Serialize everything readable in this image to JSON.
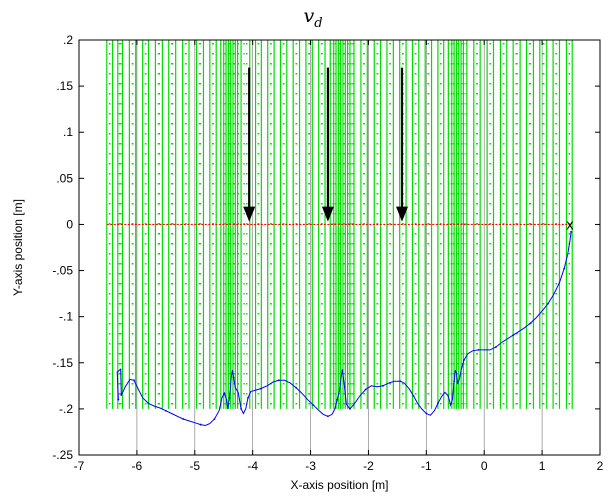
{
  "chart_data": {
    "type": "line",
    "title": "v",
    "title_subscript": "d",
    "xlabel": "X-axis position [m]",
    "ylabel": "Y-axis position [m]",
    "xlim": [
      -7,
      2
    ],
    "ylim": [
      -0.25,
      0.2
    ],
    "x_ticks": [
      -7,
      -6,
      -5,
      -4,
      -3,
      -2,
      -1,
      0,
      1,
      2
    ],
    "y_ticks": [
      -0.25,
      -0.2,
      -0.15,
      -0.1,
      -0.05,
      0,
      0.05,
      0.1,
      0.15,
      0.2
    ],
    "grid": "vertical",
    "colors": {
      "field_lines": "#00dd00",
      "reference": "#ff0000",
      "trajectory": "#0000ff",
      "grid": "#888888",
      "arrows": "#000000"
    },
    "field_lines": {
      "x_positions": [
        -6.52,
        -6.42,
        -6.33,
        -6.25,
        -6.13,
        -6.02,
        -5.9,
        -5.8,
        -5.68,
        -5.56,
        -5.45,
        -5.33,
        -5.21,
        -5.1,
        -4.97,
        -4.85,
        -4.74,
        -4.63,
        -4.55,
        -4.5,
        -4.46,
        -4.42,
        -4.38,
        -4.34,
        -4.3,
        -4.26,
        -4.2,
        -4.05,
        -3.95,
        -3.85,
        -3.74,
        -3.63,
        -3.52,
        -3.41,
        -3.3,
        -3.19,
        -3.08,
        -2.97,
        -2.86,
        -2.75,
        -2.66,
        -2.6,
        -2.56,
        -2.52,
        -2.48,
        -2.44,
        -2.4,
        -2.36,
        -2.32,
        -2.25,
        -2.13,
        -2.02,
        -1.9,
        -1.79,
        -1.68,
        -1.57,
        -1.46,
        -1.35,
        -1.24,
        -1.13,
        -1.02,
        -0.91,
        -0.8,
        -0.7,
        -0.62,
        -0.56,
        -0.52,
        -0.48,
        -0.44,
        -0.4,
        -0.36,
        -0.3,
        -0.18,
        -0.07,
        0.05,
        0.16,
        0.28,
        0.39,
        0.5,
        0.62,
        0.73,
        0.85,
        0.96,
        1.08,
        1.19,
        1.3,
        1.42,
        1.52
      ],
      "y_range": [
        -0.2,
        0.2
      ]
    },
    "reference_line": {
      "y": 0,
      "x_range": [
        -6.52,
        1.5
      ]
    },
    "arrows": [
      {
        "x": -4.06,
        "y_start": 0.17,
        "y_end": 0.003
      },
      {
        "x": -2.7,
        "y_start": 0.17,
        "y_end": 0.003
      },
      {
        "x": -1.42,
        "y_start": 0.17,
        "y_end": 0.003
      }
    ],
    "end_marker": {
      "label": "x",
      "x": 1.48,
      "y": 0.0
    },
    "series": [
      {
        "values": [
          [
            -6.32,
            -0.19
          ],
          [
            -6.34,
            -0.16
          ],
          [
            -6.28,
            -0.157
          ],
          [
            -6.27,
            -0.185
          ],
          [
            -6.2,
            -0.176
          ],
          [
            -6.12,
            -0.168
          ],
          [
            -6.05,
            -0.169
          ],
          [
            -5.98,
            -0.178
          ],
          [
            -5.9,
            -0.188
          ],
          [
            -5.8,
            -0.194
          ],
          [
            -5.7,
            -0.197
          ],
          [
            -5.6,
            -0.199
          ],
          [
            -5.5,
            -0.202
          ],
          [
            -5.4,
            -0.205
          ],
          [
            -5.3,
            -0.208
          ],
          [
            -5.2,
            -0.211
          ],
          [
            -5.1,
            -0.213
          ],
          [
            -5.0,
            -0.215
          ],
          [
            -4.9,
            -0.217
          ],
          [
            -4.82,
            -0.218
          ],
          [
            -4.74,
            -0.216
          ],
          [
            -4.66,
            -0.211
          ],
          [
            -4.58,
            -0.202
          ],
          [
            -4.53,
            -0.188
          ],
          [
            -4.49,
            -0.183
          ],
          [
            -4.45,
            -0.19
          ],
          [
            -4.43,
            -0.2
          ],
          [
            -4.4,
            -0.188
          ],
          [
            -4.37,
            -0.166
          ],
          [
            -4.35,
            -0.158
          ],
          [
            -4.33,
            -0.166
          ],
          [
            -4.3,
            -0.177
          ],
          [
            -4.25,
            -0.182
          ],
          [
            -4.2,
            -0.2
          ],
          [
            -4.16,
            -0.205
          ],
          [
            -4.12,
            -0.2
          ],
          [
            -4.08,
            -0.188
          ],
          [
            -4.03,
            -0.181
          ],
          [
            -3.96,
            -0.18
          ],
          [
            -3.86,
            -0.178
          ],
          [
            -3.75,
            -0.175
          ],
          [
            -3.65,
            -0.171
          ],
          [
            -3.55,
            -0.169
          ],
          [
            -3.45,
            -0.169
          ],
          [
            -3.35,
            -0.172
          ],
          [
            -3.25,
            -0.177
          ],
          [
            -3.15,
            -0.183
          ],
          [
            -3.05,
            -0.19
          ],
          [
            -2.95,
            -0.196
          ],
          [
            -2.85,
            -0.202
          ],
          [
            -2.78,
            -0.206
          ],
          [
            -2.7,
            -0.208
          ],
          [
            -2.63,
            -0.206
          ],
          [
            -2.58,
            -0.2
          ],
          [
            -2.54,
            -0.19
          ],
          [
            -2.5,
            -0.18
          ],
          [
            -2.47,
            -0.165
          ],
          [
            -2.45,
            -0.158
          ],
          [
            -2.42,
            -0.172
          ],
          [
            -2.38,
            -0.195
          ],
          [
            -2.32,
            -0.2
          ],
          [
            -2.25,
            -0.195
          ],
          [
            -2.15,
            -0.186
          ],
          [
            -2.05,
            -0.179
          ],
          [
            -1.95,
            -0.175
          ],
          [
            -1.85,
            -0.176
          ],
          [
            -1.75,
            -0.175
          ],
          [
            -1.65,
            -0.172
          ],
          [
            -1.55,
            -0.17
          ],
          [
            -1.45,
            -0.17
          ],
          [
            -1.38,
            -0.172
          ],
          [
            -1.3,
            -0.178
          ],
          [
            -1.22,
            -0.186
          ],
          [
            -1.15,
            -0.194
          ],
          [
            -1.08,
            -0.2
          ],
          [
            -1.0,
            -0.205
          ],
          [
            -0.93,
            -0.207
          ],
          [
            -0.86,
            -0.202
          ],
          [
            -0.8,
            -0.194
          ],
          [
            -0.74,
            -0.187
          ],
          [
            -0.68,
            -0.182
          ],
          [
            -0.62,
            -0.186
          ],
          [
            -0.58,
            -0.196
          ],
          [
            -0.55,
            -0.19
          ],
          [
            -0.52,
            -0.17
          ],
          [
            -0.5,
            -0.158
          ],
          [
            -0.48,
            -0.161
          ],
          [
            -0.46,
            -0.172
          ],
          [
            -0.43,
            -0.168
          ],
          [
            -0.4,
            -0.158
          ],
          [
            -0.35,
            -0.147
          ],
          [
            -0.28,
            -0.14
          ],
          [
            -0.2,
            -0.137
          ],
          [
            -0.1,
            -0.136
          ],
          [
            0.0,
            -0.136
          ],
          [
            0.1,
            -0.136
          ],
          [
            0.2,
            -0.133
          ],
          [
            0.3,
            -0.128
          ],
          [
            0.4,
            -0.124
          ],
          [
            0.5,
            -0.12
          ],
          [
            0.6,
            -0.116
          ],
          [
            0.7,
            -0.112
          ],
          [
            0.8,
            -0.107
          ],
          [
            0.9,
            -0.101
          ],
          [
            1.0,
            -0.094
          ],
          [
            1.1,
            -0.086
          ],
          [
            1.2,
            -0.076
          ],
          [
            1.3,
            -0.063
          ],
          [
            1.38,
            -0.048
          ],
          [
            1.44,
            -0.033
          ],
          [
            1.48,
            -0.018
          ],
          [
            1.5,
            -0.008
          ]
        ]
      }
    ]
  }
}
